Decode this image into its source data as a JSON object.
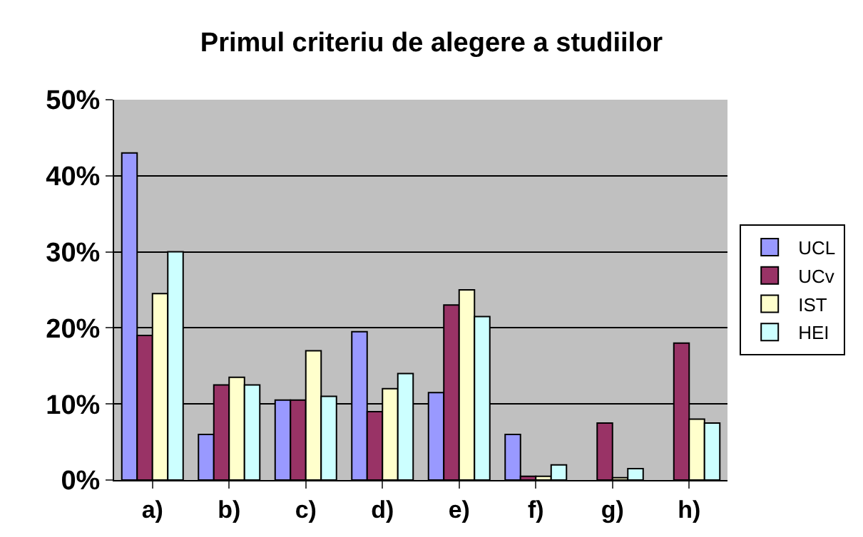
{
  "chart_data": {
    "type": "bar",
    "title": "Primul criteriu de alegere a studiilor",
    "categories": [
      "a)",
      "b)",
      "c)",
      "d)",
      "e)",
      "f)",
      "g)",
      "h)"
    ],
    "series": [
      {
        "name": "UCL",
        "color": "#9999ff",
        "values": [
          43,
          6,
          10.5,
          19.5,
          11.5,
          6,
          0,
          0
        ]
      },
      {
        "name": "UCv",
        "color": "#993366",
        "values": [
          19,
          12.5,
          10.5,
          9,
          23,
          0.5,
          7.5,
          18
        ]
      },
      {
        "name": "IST",
        "color": "#ffffcc",
        "values": [
          24.5,
          13.5,
          17,
          12,
          25,
          0.5,
          0.3,
          8
        ]
      },
      {
        "name": "HEI",
        "color": "#ccffff",
        "values": [
          30,
          12.5,
          11,
          14,
          21.5,
          2,
          1.5,
          7.5
        ]
      }
    ],
    "ylim": [
      0,
      50
    ],
    "yticks": [
      {
        "value": 0,
        "label": "0%"
      },
      {
        "value": 10,
        "label": "10%"
      },
      {
        "value": 20,
        "label": "20%"
      },
      {
        "value": 30,
        "label": "30%"
      },
      {
        "value": 40,
        "label": "40%"
      },
      {
        "value": 50,
        "label": "50%"
      }
    ],
    "grid": "y",
    "legend": "right"
  }
}
